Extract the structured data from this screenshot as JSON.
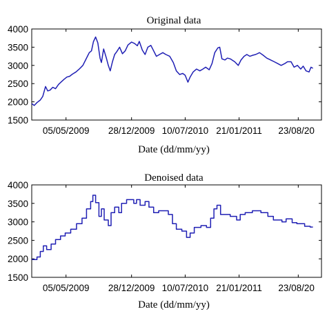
{
  "chart_data": [
    {
      "type": "line",
      "title": "Original data",
      "xlabel": "Date (dd/mm/yy)",
      "ylabel": "",
      "ylim": [
        1500,
        4000
      ],
      "yticks": [
        1500,
        2000,
        2500,
        3000,
        3500,
        4000
      ],
      "xlim": [
        "2009-01-01",
        "2011-11-15"
      ],
      "xtick_dates": [
        "2009-05-05",
        "2009-12-28",
        "2010-07-10",
        "2011-01-21",
        "2011-08-23"
      ],
      "xtick_labels": [
        "05/05/2009",
        "28/12/2009",
        "10/07/2010",
        "21/01/2011",
        "23/08/20"
      ],
      "grid": false,
      "color": "#1f1fb4",
      "series": [
        {
          "values": [
            [
              "2009-01-01",
              1950
            ],
            [
              "2009-01-10",
              1900
            ],
            [
              "2009-01-20",
              1980
            ],
            [
              "2009-02-01",
              2050
            ],
            [
              "2009-02-10",
              2150
            ],
            [
              "2009-02-20",
              2420
            ],
            [
              "2009-02-28",
              2300
            ],
            [
              "2009-03-08",
              2320
            ],
            [
              "2009-03-18",
              2400
            ],
            [
              "2009-03-28",
              2360
            ],
            [
              "2009-04-08",
              2480
            ],
            [
              "2009-04-18",
              2550
            ],
            [
              "2009-04-28",
              2620
            ],
            [
              "2009-05-08",
              2680
            ],
            [
              "2009-05-18",
              2700
            ],
            [
              "2009-05-28",
              2760
            ],
            [
              "2009-06-10",
              2820
            ],
            [
              "2009-06-22",
              2900
            ],
            [
              "2009-07-05",
              3000
            ],
            [
              "2009-07-15",
              3150
            ],
            [
              "2009-07-28",
              3350
            ],
            [
              "2009-08-05",
              3400
            ],
            [
              "2009-08-12",
              3650
            ],
            [
              "2009-08-20",
              3780
            ],
            [
              "2009-08-28",
              3620
            ],
            [
              "2009-09-05",
              3200
            ],
            [
              "2009-09-10",
              3080
            ],
            [
              "2009-09-18",
              3450
            ],
            [
              "2009-09-28",
              3200
            ],
            [
              "2009-10-05",
              3000
            ],
            [
              "2009-10-12",
              2850
            ],
            [
              "2009-10-20",
              3100
            ],
            [
              "2009-10-28",
              3300
            ],
            [
              "2009-11-05",
              3380
            ],
            [
              "2009-11-15",
              3500
            ],
            [
              "2009-11-25",
              3320
            ],
            [
              "2009-12-05",
              3400
            ],
            [
              "2009-12-15",
              3560
            ],
            [
              "2009-12-28",
              3640
            ],
            [
              "2010-01-08",
              3600
            ],
            [
              "2010-01-18",
              3540
            ],
            [
              "2010-01-25",
              3660
            ],
            [
              "2010-02-05",
              3420
            ],
            [
              "2010-02-15",
              3300
            ],
            [
              "2010-02-25",
              3500
            ],
            [
              "2010-03-08",
              3550
            ],
            [
              "2010-03-18",
              3400
            ],
            [
              "2010-03-28",
              3250
            ],
            [
              "2010-04-08",
              3300
            ],
            [
              "2010-04-20",
              3350
            ],
            [
              "2010-05-01",
              3300
            ],
            [
              "2010-05-15",
              3250
            ],
            [
              "2010-05-28",
              3080
            ],
            [
              "2010-06-08",
              2850
            ],
            [
              "2010-06-20",
              2750
            ],
            [
              "2010-07-01",
              2780
            ],
            [
              "2010-07-10",
              2730
            ],
            [
              "2010-07-20",
              2540
            ],
            [
              "2010-07-28",
              2680
            ],
            [
              "2010-08-08",
              2820
            ],
            [
              "2010-08-20",
              2900
            ],
            [
              "2010-09-01",
              2850
            ],
            [
              "2010-09-12",
              2900
            ],
            [
              "2010-09-22",
              2950
            ],
            [
              "2010-10-05",
              2880
            ],
            [
              "2010-10-15",
              3050
            ],
            [
              "2010-10-25",
              3350
            ],
            [
              "2010-11-05",
              3480
            ],
            [
              "2010-11-12",
              3500
            ],
            [
              "2010-11-20",
              3180
            ],
            [
              "2010-12-01",
              3150
            ],
            [
              "2010-12-10",
              3200
            ],
            [
              "2010-12-20",
              3180
            ],
            [
              "2011-01-05",
              3100
            ],
            [
              "2011-01-18",
              3000
            ],
            [
              "2011-01-28",
              3150
            ],
            [
              "2011-02-08",
              3250
            ],
            [
              "2011-02-18",
              3300
            ],
            [
              "2011-03-01",
              3250
            ],
            [
              "2011-03-12",
              3280
            ],
            [
              "2011-03-22",
              3300
            ],
            [
              "2011-04-05",
              3350
            ],
            [
              "2011-04-18",
              3280
            ],
            [
              "2011-05-01",
              3200
            ],
            [
              "2011-05-15",
              3150
            ],
            [
              "2011-05-28",
              3100
            ],
            [
              "2011-06-10",
              3050
            ],
            [
              "2011-06-22",
              3000
            ],
            [
              "2011-07-05",
              3050
            ],
            [
              "2011-07-15",
              3100
            ],
            [
              "2011-07-28",
              3100
            ],
            [
              "2011-08-08",
              2950
            ],
            [
              "2011-08-20",
              3000
            ],
            [
              "2011-09-01",
              2900
            ],
            [
              "2011-09-10",
              2980
            ],
            [
              "2011-09-20",
              2850
            ],
            [
              "2011-10-01",
              2820
            ],
            [
              "2011-10-08",
              2950
            ],
            [
              "2011-10-15",
              2920
            ]
          ]
        }
      ]
    },
    {
      "type": "line",
      "title": "Denoised data",
      "xlabel": "Date (dd/mm/yy)",
      "ylabel": "",
      "ylim": [
        1500,
        4000
      ],
      "yticks": [
        1500,
        2000,
        2500,
        3000,
        3500,
        4000
      ],
      "xlim": [
        "2009-01-01",
        "2011-11-15"
      ],
      "xtick_dates": [
        "2009-05-05",
        "2009-12-28",
        "2010-07-10",
        "2011-01-21",
        "2011-08-23"
      ],
      "xtick_labels": [
        "05/05/2009",
        "28/12/2009",
        "10/07/2010",
        "21/01/2011",
        "23/08/20"
      ],
      "grid": false,
      "color": "#1f1fb4",
      "series": [
        {
          "values": [
            [
              "2009-01-01",
              1980
            ],
            [
              "2009-01-20",
              1980
            ],
            [
              "2009-01-20",
              2050
            ],
            [
              "2009-02-01",
              2050
            ],
            [
              "2009-02-01",
              2200
            ],
            [
              "2009-02-12",
              2200
            ],
            [
              "2009-02-12",
              2350
            ],
            [
              "2009-02-24",
              2350
            ],
            [
              "2009-02-24",
              2250
            ],
            [
              "2009-03-12",
              2250
            ],
            [
              "2009-03-12",
              2400
            ],
            [
              "2009-03-28",
              2400
            ],
            [
              "2009-03-28",
              2520
            ],
            [
              "2009-04-15",
              2520
            ],
            [
              "2009-04-15",
              2620
            ],
            [
              "2009-05-02",
              2620
            ],
            [
              "2009-05-02",
              2700
            ],
            [
              "2009-05-22",
              2700
            ],
            [
              "2009-05-22",
              2800
            ],
            [
              "2009-06-12",
              2800
            ],
            [
              "2009-06-12",
              2950
            ],
            [
              "2009-07-02",
              2950
            ],
            [
              "2009-07-02",
              3100
            ],
            [
              "2009-07-18",
              3100
            ],
            [
              "2009-07-18",
              3350
            ],
            [
              "2009-08-02",
              3350
            ],
            [
              "2009-08-02",
              3550
            ],
            [
              "2009-08-10",
              3550
            ],
            [
              "2009-08-10",
              3720
            ],
            [
              "2009-08-20",
              3720
            ],
            [
              "2009-08-20",
              3520
            ],
            [
              "2009-09-01",
              3520
            ],
            [
              "2009-09-01",
              3150
            ],
            [
              "2009-09-10",
              3150
            ],
            [
              "2009-09-10",
              3350
            ],
            [
              "2009-09-20",
              3350
            ],
            [
              "2009-09-20",
              3050
            ],
            [
              "2009-10-05",
              3050
            ],
            [
              "2009-10-05",
              2900
            ],
            [
              "2009-10-15",
              2900
            ],
            [
              "2009-10-15",
              3250
            ],
            [
              "2009-10-28",
              3250
            ],
            [
              "2009-10-28",
              3400
            ],
            [
              "2009-11-12",
              3400
            ],
            [
              "2009-11-12",
              3250
            ],
            [
              "2009-11-22",
              3250
            ],
            [
              "2009-11-22",
              3500
            ],
            [
              "2009-12-10",
              3500
            ],
            [
              "2009-12-10",
              3600
            ],
            [
              "2010-01-05",
              3600
            ],
            [
              "2010-01-05",
              3500
            ],
            [
              "2010-01-15",
              3500
            ],
            [
              "2010-01-15",
              3600
            ],
            [
              "2010-01-28",
              3600
            ],
            [
              "2010-01-28",
              3450
            ],
            [
              "2010-02-15",
              3450
            ],
            [
              "2010-02-15",
              3550
            ],
            [
              "2010-03-01",
              3550
            ],
            [
              "2010-03-01",
              3400
            ],
            [
              "2010-03-18",
              3400
            ],
            [
              "2010-03-18",
              3250
            ],
            [
              "2010-04-05",
              3250
            ],
            [
              "2010-04-05",
              3300
            ],
            [
              "2010-05-10",
              3300
            ],
            [
              "2010-05-10",
              3200
            ],
            [
              "2010-05-25",
              3200
            ],
            [
              "2010-05-25",
              2950
            ],
            [
              "2010-06-08",
              2950
            ],
            [
              "2010-06-08",
              2800
            ],
            [
              "2010-06-28",
              2800
            ],
            [
              "2010-06-28",
              2750
            ],
            [
              "2010-07-15",
              2750
            ],
            [
              "2010-07-15",
              2580
            ],
            [
              "2010-07-28",
              2580
            ],
            [
              "2010-07-28",
              2700
            ],
            [
              "2010-08-12",
              2700
            ],
            [
              "2010-08-12",
              2850
            ],
            [
              "2010-09-05",
              2850
            ],
            [
              "2010-09-05",
              2900
            ],
            [
              "2010-09-25",
              2900
            ],
            [
              "2010-09-25",
              2850
            ],
            [
              "2010-10-10",
              2850
            ],
            [
              "2010-10-10",
              3100
            ],
            [
              "2010-10-22",
              3100
            ],
            [
              "2010-10-22",
              3350
            ],
            [
              "2010-11-02",
              3350
            ],
            [
              "2010-11-02",
              3450
            ],
            [
              "2010-11-15",
              3450
            ],
            [
              "2010-11-15",
              3200
            ],
            [
              "2010-12-20",
              3200
            ],
            [
              "2010-12-20",
              3150
            ],
            [
              "2011-01-12",
              3150
            ],
            [
              "2011-01-12",
              3050
            ],
            [
              "2011-01-25",
              3050
            ],
            [
              "2011-01-25",
              3200
            ],
            [
              "2011-02-12",
              3200
            ],
            [
              "2011-02-12",
              3250
            ],
            [
              "2011-03-10",
              3250
            ],
            [
              "2011-03-10",
              3300
            ],
            [
              "2011-04-10",
              3300
            ],
            [
              "2011-04-10",
              3250
            ],
            [
              "2011-05-05",
              3250
            ],
            [
              "2011-05-05",
              3150
            ],
            [
              "2011-05-25",
              3150
            ],
            [
              "2011-05-25",
              3050
            ],
            [
              "2011-06-25",
              3050
            ],
            [
              "2011-06-25",
              3000
            ],
            [
              "2011-07-10",
              3000
            ],
            [
              "2011-07-10",
              3080
            ],
            [
              "2011-08-01",
              3080
            ],
            [
              "2011-08-01",
              2980
            ],
            [
              "2011-08-18",
              2980
            ],
            [
              "2011-08-18",
              2950
            ],
            [
              "2011-09-15",
              2950
            ],
            [
              "2011-09-15",
              2880
            ],
            [
              "2011-10-05",
              2880
            ],
            [
              "2011-10-05",
              2860
            ],
            [
              "2011-10-15",
              2860
            ]
          ]
        }
      ]
    }
  ]
}
